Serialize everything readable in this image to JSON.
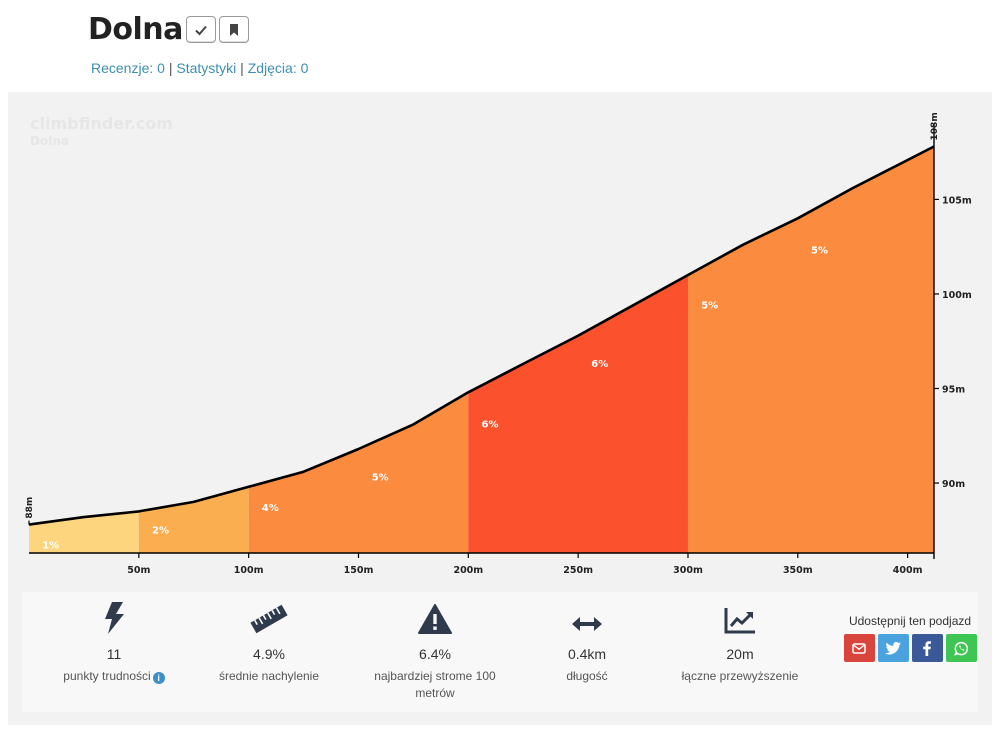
{
  "header": {
    "title": "Dolna",
    "links": [
      "Recenzje: 0",
      "Statystyki",
      "Zdjęcia: 0"
    ],
    "separator": " | "
  },
  "watermark": {
    "site": "climbfinder.com",
    "name": "Dolna"
  },
  "chart_data": {
    "type": "area",
    "x_unit": "m",
    "y_unit": "m",
    "xlim": [
      0,
      412
    ],
    "ylim": [
      86.3,
      109.2
    ],
    "x_ticks": [
      50,
      100,
      150,
      200,
      250,
      300,
      350,
      400
    ],
    "x_tick_labels": [
      "50m",
      "100m",
      "150m",
      "200m",
      "250m",
      "300m",
      "350m",
      "400m"
    ],
    "y_ticks": [
      90,
      95,
      100,
      105
    ],
    "y_tick_labels": [
      "90m",
      "95m",
      "100m",
      "105m"
    ],
    "start_label": "88m",
    "end_label": "108m",
    "profile": [
      {
        "x": 0,
        "y": 87.8
      },
      {
        "x": 25,
        "y": 88.2
      },
      {
        "x": 50,
        "y": 88.5
      },
      {
        "x": 75,
        "y": 89.0
      },
      {
        "x": 100,
        "y": 89.8
      },
      {
        "x": 125,
        "y": 90.6
      },
      {
        "x": 150,
        "y": 91.8
      },
      {
        "x": 175,
        "y": 93.1
      },
      {
        "x": 200,
        "y": 94.8
      },
      {
        "x": 225,
        "y": 96.3
      },
      {
        "x": 250,
        "y": 97.8
      },
      {
        "x": 275,
        "y": 99.4
      },
      {
        "x": 300,
        "y": 101.0
      },
      {
        "x": 325,
        "y": 102.6
      },
      {
        "x": 350,
        "y": 104.0
      },
      {
        "x": 375,
        "y": 105.6
      },
      {
        "x": 412,
        "y": 107.8
      }
    ],
    "segments": [
      {
        "from": 0,
        "to": 50,
        "label": "1%",
        "color": "#fdd57e"
      },
      {
        "from": 50,
        "to": 100,
        "label": "2%",
        "color": "#fbae4f"
      },
      {
        "from": 100,
        "to": 200,
        "label": "",
        "color": "#fb8c3f"
      },
      {
        "from": 200,
        "to": 300,
        "label": "",
        "color": "#fb512d"
      },
      {
        "from": 300,
        "to": 412,
        "label": "",
        "color": "#fb8c3f"
      }
    ],
    "grade_labels": [
      {
        "x": 6,
        "y": 87.8,
        "label": "1%"
      },
      {
        "x": 56,
        "y": 88.6,
        "label": "2%"
      },
      {
        "x": 106,
        "y": 89.8,
        "label": "4%"
      },
      {
        "x": 156,
        "y": 91.4,
        "label": "5%"
      },
      {
        "x": 206,
        "y": 94.2,
        "label": "6%"
      },
      {
        "x": 256,
        "y": 97.4,
        "label": "6%"
      },
      {
        "x": 306,
        "y": 100.5,
        "label": "5%"
      },
      {
        "x": 356,
        "y": 103.4,
        "label": "5%"
      }
    ]
  },
  "stats": [
    {
      "icon": "bolt-icon",
      "value": "11",
      "label": "punkty trudności",
      "info": "i"
    },
    {
      "icon": "ruler-icon",
      "value": "4.9%",
      "label": "średnie nachylenie"
    },
    {
      "icon": "warning-icon",
      "value": "6.4%",
      "label": "najbardziej strome 100",
      "label2": "metrów"
    },
    {
      "icon": "arrows-h-icon",
      "value": "0.4km",
      "label": "długość"
    },
    {
      "icon": "line-chart-icon",
      "value": "20m",
      "label": "łączne przewyższenie"
    }
  ],
  "share": {
    "label": "Udostępnij ten podjazd",
    "buttons": [
      {
        "name": "email",
        "color": "#d9443c"
      },
      {
        "name": "twitter",
        "color": "#4aa3df"
      },
      {
        "name": "facebook",
        "color": "#3b5998"
      },
      {
        "name": "whatsapp",
        "color": "#3ec554"
      }
    ]
  },
  "colors": {
    "link": "#3d8fb0",
    "line": "#000000"
  }
}
